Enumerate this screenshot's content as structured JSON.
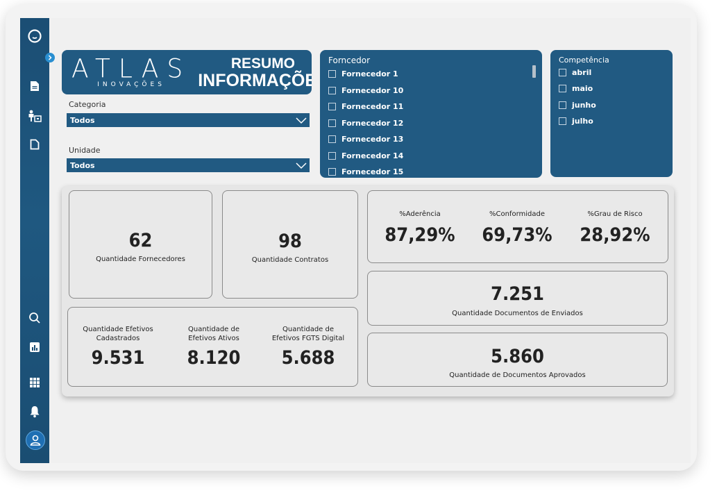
{
  "brand": {
    "logo_word": "ATLAS",
    "logo_subword": "INOVAÇÕES",
    "header_line1": "RESUMO",
    "header_line2": "INFORMAÇÕES"
  },
  "filters": {
    "categoria": {
      "label": "Categoria",
      "value": "Todos"
    },
    "unidade": {
      "label": "Unidade",
      "value": "Todos"
    }
  },
  "fornecedor_panel": {
    "title": "Forncedor",
    "options": [
      "Fornecedor 1",
      "Fornecedor 10",
      "Fornecedor 11",
      "Fornecedor 12",
      "Fornecedor 13",
      "Fornecedor 14",
      "Fornecedor 15"
    ]
  },
  "competencia_panel": {
    "title": "Competência",
    "options": [
      "abril",
      "maio",
      "junho",
      "julho"
    ]
  },
  "kpis": {
    "fornecedores": {
      "value": "62",
      "label": "Quantidade Fornecedores"
    },
    "contratos": {
      "value": "98",
      "label": "Quantidade Contratos"
    },
    "aderencia": {
      "label": "%Aderência",
      "value": "87,29%"
    },
    "conformidade": {
      "label": "%Conformidade",
      "value": "69,73%"
    },
    "risco": {
      "label": "%Grau de Risco",
      "value": "28,92%"
    },
    "efetivos_cadastrados": {
      "label1": "Quantidade Efetivos",
      "label2": "Cadastrados",
      "value": "9.531"
    },
    "efetivos_ativos": {
      "label1": "Quantidade de",
      "label2": "Efetivos Ativos",
      "value": "8.120"
    },
    "efetivos_fgts": {
      "label1": "Quantidade de",
      "label2": "Efetivos FGTS Digital",
      "value": "5.688"
    },
    "docs_enviados": {
      "value": "7.251",
      "label": "Quantidade Documentos de Enviados"
    },
    "docs_aprovados": {
      "value": "5.860",
      "label": "Quantidade de Documentos Aprovados"
    }
  },
  "sidebar_icons": [
    "app-logo-icon",
    "expand-icon",
    "document-icon",
    "org-chart-icon",
    "file-icon",
    "search-icon",
    "chart-icon",
    "grid-icon",
    "bell-icon",
    "user-icon"
  ],
  "colors": {
    "primary": "#215a82",
    "sidebar": "#1b4e74",
    "background": "#f0f0f0"
  }
}
